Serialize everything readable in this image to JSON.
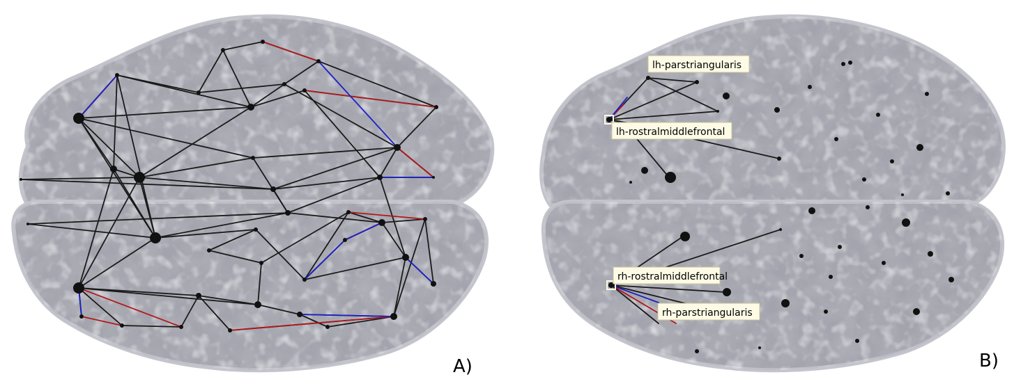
{
  "panels": [
    {
      "letter": "A)"
    },
    {
      "letter": "B)"
    }
  ],
  "labels": {
    "lh_parstriangularis": "lh-parstriangularis",
    "lh_rostralmiddlefrontal": "lh-rostralmiddlefrontal",
    "rh_rostralmiddlefrontal": "rh-rostralmiddlefrontal",
    "rh_parstriangularis": "rh-parstriangularis"
  },
  "colors": {
    "brain_light": "#d6d6dc",
    "brain_mid": "#a3a3ad",
    "brain_dark": "#6e6e7a",
    "edge_default": "#1a1a1a",
    "edge_positive": "#b01818",
    "edge_negative": "#1a20c8",
    "node": "#111111",
    "label_box": "#fdfbe6"
  }
}
